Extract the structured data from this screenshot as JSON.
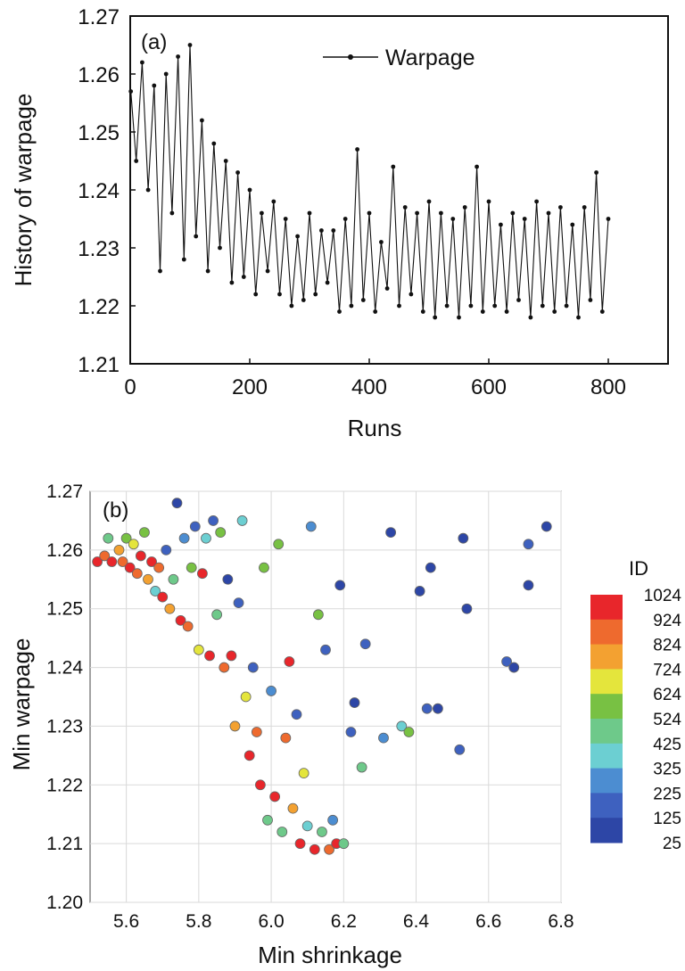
{
  "chart_data": [
    {
      "type": "line",
      "panel_label": "(a)",
      "xlabel": "Runs",
      "ylabel": "History of warpage",
      "xlim": [
        0,
        900
      ],
      "ylim": [
        1.21,
        1.27
      ],
      "x_ticks": [
        "0",
        "200",
        "400",
        "600",
        "800"
      ],
      "y_ticks": [
        "1.21",
        "1.22",
        "1.23",
        "1.24",
        "1.25",
        "1.26",
        "1.27"
      ],
      "legend_position": "top-right",
      "grid": false,
      "series": [
        {
          "name": "Warpage",
          "color": "#111111",
          "x": [
            1,
            10,
            20,
            30,
            40,
            50,
            60,
            70,
            80,
            90,
            100,
            110,
            120,
            130,
            140,
            150,
            160,
            170,
            180,
            190,
            200,
            210,
            220,
            230,
            240,
            250,
            260,
            270,
            280,
            290,
            300,
            310,
            320,
            330,
            340,
            350,
            360,
            370,
            380,
            390,
            400,
            410,
            420,
            430,
            440,
            450,
            460,
            470,
            480,
            490,
            500,
            510,
            520,
            530,
            540,
            550,
            560,
            570,
            580,
            590,
            600,
            610,
            620,
            630,
            640,
            650,
            660,
            670,
            680,
            690,
            700,
            710,
            720,
            730,
            740,
            750,
            760,
            770,
            780,
            790,
            800
          ],
          "y": [
            1.257,
            1.245,
            1.262,
            1.24,
            1.258,
            1.226,
            1.26,
            1.236,
            1.263,
            1.228,
            1.265,
            1.232,
            1.252,
            1.226,
            1.248,
            1.23,
            1.245,
            1.224,
            1.243,
            1.225,
            1.24,
            1.222,
            1.236,
            1.226,
            1.238,
            1.222,
            1.235,
            1.22,
            1.232,
            1.221,
            1.236,
            1.222,
            1.233,
            1.224,
            1.233,
            1.219,
            1.235,
            1.22,
            1.247,
            1.221,
            1.236,
            1.219,
            1.231,
            1.223,
            1.244,
            1.22,
            1.237,
            1.222,
            1.236,
            1.219,
            1.238,
            1.218,
            1.236,
            1.22,
            1.235,
            1.218,
            1.237,
            1.22,
            1.244,
            1.219,
            1.238,
            1.22,
            1.234,
            1.219,
            1.236,
            1.221,
            1.235,
            1.218,
            1.238,
            1.22,
            1.236,
            1.219,
            1.237,
            1.22,
            1.234,
            1.218,
            1.237,
            1.221,
            1.243,
            1.219,
            1.235
          ]
        }
      ]
    },
    {
      "type": "scatter",
      "panel_label": "(b)",
      "xlabel": "Min shrinkage",
      "ylabel": "Min warpage",
      "xlim": [
        5.5,
        6.8
      ],
      "ylim": [
        1.2,
        1.27
      ],
      "x_ticks": [
        "5.6",
        "5.8",
        "6.0",
        "6.2",
        "6.4",
        "6.6",
        "6.8"
      ],
      "y_ticks": [
        "1.20",
        "1.21",
        "1.22",
        "1.23",
        "1.24",
        "1.25",
        "1.26",
        "1.27"
      ],
      "grid": true,
      "colorbar": {
        "title": "ID",
        "labels": [
          "1024",
          "924",
          "824",
          "724",
          "624",
          "524",
          "425",
          "325",
          "225",
          "125",
          "25"
        ],
        "colors": [
          "#e8262b",
          "#ee6a2e",
          "#f3a131",
          "#e4e53c",
          "#78c143",
          "#6ec98a",
          "#6ccfd2",
          "#4c8dd1",
          "#3e61bf",
          "#2d46a6"
        ]
      },
      "points": [
        {
          "x": 5.52,
          "y": 1.258,
          "id": 1024
        },
        {
          "x": 5.54,
          "y": 1.259,
          "id": 924
        },
        {
          "x": 5.55,
          "y": 1.262,
          "id": 524
        },
        {
          "x": 5.56,
          "y": 1.258,
          "id": 1024
        },
        {
          "x": 5.58,
          "y": 1.26,
          "id": 824
        },
        {
          "x": 5.59,
          "y": 1.258,
          "id": 924
        },
        {
          "x": 5.6,
          "y": 1.262,
          "id": 624
        },
        {
          "x": 5.61,
          "y": 1.257,
          "id": 1024
        },
        {
          "x": 5.62,
          "y": 1.261,
          "id": 724
        },
        {
          "x": 5.63,
          "y": 1.256,
          "id": 924
        },
        {
          "x": 5.64,
          "y": 1.259,
          "id": 1024
        },
        {
          "x": 5.65,
          "y": 1.263,
          "id": 624
        },
        {
          "x": 5.66,
          "y": 1.255,
          "id": 824
        },
        {
          "x": 5.67,
          "y": 1.258,
          "id": 1024
        },
        {
          "x": 5.68,
          "y": 1.253,
          "id": 325
        },
        {
          "x": 5.69,
          "y": 1.257,
          "id": 924
        },
        {
          "x": 5.7,
          "y": 1.252,
          "id": 1024
        },
        {
          "x": 5.71,
          "y": 1.26,
          "id": 125
        },
        {
          "x": 5.72,
          "y": 1.25,
          "id": 824
        },
        {
          "x": 5.73,
          "y": 1.255,
          "id": 425
        },
        {
          "x": 5.74,
          "y": 1.268,
          "id": 25
        },
        {
          "x": 5.75,
          "y": 1.248,
          "id": 1024
        },
        {
          "x": 5.76,
          "y": 1.262,
          "id": 225
        },
        {
          "x": 5.77,
          "y": 1.247,
          "id": 924
        },
        {
          "x": 5.78,
          "y": 1.257,
          "id": 624
        },
        {
          "x": 5.79,
          "y": 1.264,
          "id": 125
        },
        {
          "x": 5.8,
          "y": 1.243,
          "id": 724
        },
        {
          "x": 5.81,
          "y": 1.256,
          "id": 1024
        },
        {
          "x": 5.82,
          "y": 1.262,
          "id": 325
        },
        {
          "x": 5.83,
          "y": 1.242,
          "id": 1024
        },
        {
          "x": 5.84,
          "y": 1.265,
          "id": 125
        },
        {
          "x": 5.85,
          "y": 1.249,
          "id": 524
        },
        {
          "x": 5.86,
          "y": 1.263,
          "id": 624
        },
        {
          "x": 5.87,
          "y": 1.24,
          "id": 924
        },
        {
          "x": 5.88,
          "y": 1.255,
          "id": 25
        },
        {
          "x": 5.89,
          "y": 1.242,
          "id": 1024
        },
        {
          "x": 5.9,
          "y": 1.23,
          "id": 824
        },
        {
          "x": 5.91,
          "y": 1.251,
          "id": 125
        },
        {
          "x": 5.92,
          "y": 1.265,
          "id": 325
        },
        {
          "x": 5.93,
          "y": 1.235,
          "id": 724
        },
        {
          "x": 5.94,
          "y": 1.225,
          "id": 1024
        },
        {
          "x": 5.95,
          "y": 1.24,
          "id": 125
        },
        {
          "x": 5.96,
          "y": 1.229,
          "id": 924
        },
        {
          "x": 5.97,
          "y": 1.22,
          "id": 1024
        },
        {
          "x": 5.98,
          "y": 1.257,
          "id": 624
        },
        {
          "x": 5.99,
          "y": 1.214,
          "id": 524
        },
        {
          "x": 6.0,
          "y": 1.236,
          "id": 225
        },
        {
          "x": 6.01,
          "y": 1.218,
          "id": 1024
        },
        {
          "x": 6.02,
          "y": 1.261,
          "id": 624
        },
        {
          "x": 6.03,
          "y": 1.212,
          "id": 425
        },
        {
          "x": 6.04,
          "y": 1.228,
          "id": 924
        },
        {
          "x": 6.05,
          "y": 1.241,
          "id": 1024
        },
        {
          "x": 6.06,
          "y": 1.216,
          "id": 824
        },
        {
          "x": 6.07,
          "y": 1.232,
          "id": 125
        },
        {
          "x": 6.08,
          "y": 1.21,
          "id": 1024
        },
        {
          "x": 6.09,
          "y": 1.222,
          "id": 724
        },
        {
          "x": 6.1,
          "y": 1.213,
          "id": 325
        },
        {
          "x": 6.11,
          "y": 1.264,
          "id": 225
        },
        {
          "x": 6.12,
          "y": 1.209,
          "id": 1024
        },
        {
          "x": 6.13,
          "y": 1.249,
          "id": 624
        },
        {
          "x": 6.14,
          "y": 1.212,
          "id": 524
        },
        {
          "x": 6.15,
          "y": 1.243,
          "id": 125
        },
        {
          "x": 6.16,
          "y": 1.209,
          "id": 924
        },
        {
          "x": 6.17,
          "y": 1.214,
          "id": 225
        },
        {
          "x": 6.18,
          "y": 1.21,
          "id": 1024
        },
        {
          "x": 6.19,
          "y": 1.254,
          "id": 25
        },
        {
          "x": 6.2,
          "y": 1.21,
          "id": 425
        },
        {
          "x": 6.22,
          "y": 1.229,
          "id": 125
        },
        {
          "x": 6.23,
          "y": 1.234,
          "id": 25
        },
        {
          "x": 6.25,
          "y": 1.223,
          "id": 524
        },
        {
          "x": 6.26,
          "y": 1.244,
          "id": 125
        },
        {
          "x": 6.31,
          "y": 1.228,
          "id": 225
        },
        {
          "x": 6.33,
          "y": 1.263,
          "id": 25
        },
        {
          "x": 6.36,
          "y": 1.23,
          "id": 325
        },
        {
          "x": 6.38,
          "y": 1.229,
          "id": 624
        },
        {
          "x": 6.41,
          "y": 1.253,
          "id": 25
        },
        {
          "x": 6.43,
          "y": 1.233,
          "id": 125
        },
        {
          "x": 6.44,
          "y": 1.257,
          "id": 25
        },
        {
          "x": 6.46,
          "y": 1.233,
          "id": 25
        },
        {
          "x": 6.52,
          "y": 1.226,
          "id": 125
        },
        {
          "x": 6.53,
          "y": 1.262,
          "id": 25
        },
        {
          "x": 6.54,
          "y": 1.25,
          "id": 25
        },
        {
          "x": 6.65,
          "y": 1.241,
          "id": 125
        },
        {
          "x": 6.67,
          "y": 1.24,
          "id": 25
        },
        {
          "x": 6.71,
          "y": 1.261,
          "id": 125
        },
        {
          "x": 6.71,
          "y": 1.254,
          "id": 25
        },
        {
          "x": 6.76,
          "y": 1.264,
          "id": 25
        }
      ]
    }
  ]
}
